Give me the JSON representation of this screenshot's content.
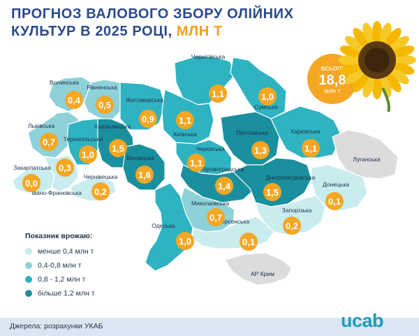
{
  "title": {
    "line1": "ПРОГНОЗ ВАЛОВОГО ЗБОРУ ОЛІЙНИХ",
    "line2_main": "КУЛЬТУР В 2025 РОЦІ,",
    "line2_accent": " МЛН Т"
  },
  "total": {
    "label": "всього",
    "value": "18,8",
    "unit": "млн т"
  },
  "legend": {
    "title": "Показник врожаю:",
    "items": [
      {
        "label": "менше 0,4 млн т",
        "color": "#c9ecef"
      },
      {
        "label": "0,4-0,8 млн т",
        "color": "#8ed1d9"
      },
      {
        "label": "0,8 - 1,2 млн т",
        "color": "#2fb3c1"
      },
      {
        "label": "більше 1,2 млн т",
        "color": "#1a8f9e"
      }
    ]
  },
  "regions": [
    {
      "name": "Волинська",
      "value": "0,4"
    },
    {
      "name": "Рівненська",
      "value": "0,5"
    },
    {
      "name": "Житомирська",
      "value": "0,9"
    },
    {
      "name": "Чернігівська",
      "value": "1,1"
    },
    {
      "name": "Сумська",
      "value": "1,0"
    },
    {
      "name": "Львівська",
      "value": "0,7"
    },
    {
      "name": "Тернопільська",
      "value": "1,0"
    },
    {
      "name": "Хмельницька",
      "value": "1,5"
    },
    {
      "name": "Київська",
      "value": "1,1"
    },
    {
      "name": "Полтавська",
      "value": "1,3"
    },
    {
      "name": "Харківська",
      "value": "1,1"
    },
    {
      "name": "Закарпатська",
      "value": "0,0"
    },
    {
      "name": "Івано-Франківська",
      "value": "0,3"
    },
    {
      "name": "Чернівецька",
      "value": "0,2"
    },
    {
      "name": "Вінницька",
      "value": "1,6"
    },
    {
      "name": "Черкаська",
      "value": "1,1"
    },
    {
      "name": "Кіровоградська",
      "value": "1,4"
    },
    {
      "name": "Дніпропетровська",
      "value": "1,5"
    },
    {
      "name": "Луганська",
      "value": ""
    },
    {
      "name": "Донецька",
      "value": "0,1"
    },
    {
      "name": "Миколаївська",
      "value": "0,7"
    },
    {
      "name": "Запорізька",
      "value": "0,2"
    },
    {
      "name": "Одеська",
      "value": "1,0"
    },
    {
      "name": "Херсонська",
      "value": "0,1"
    },
    {
      "name": "АР Крим",
      "value": ""
    }
  ],
  "source": "Джерела: розрахунки УКАБ",
  "logo": "ucab",
  "colors": {
    "title": "#2a4a8c",
    "accent": "#f29f1b",
    "bubble": "#f5a623",
    "no_data": "#dcdcdc"
  }
}
